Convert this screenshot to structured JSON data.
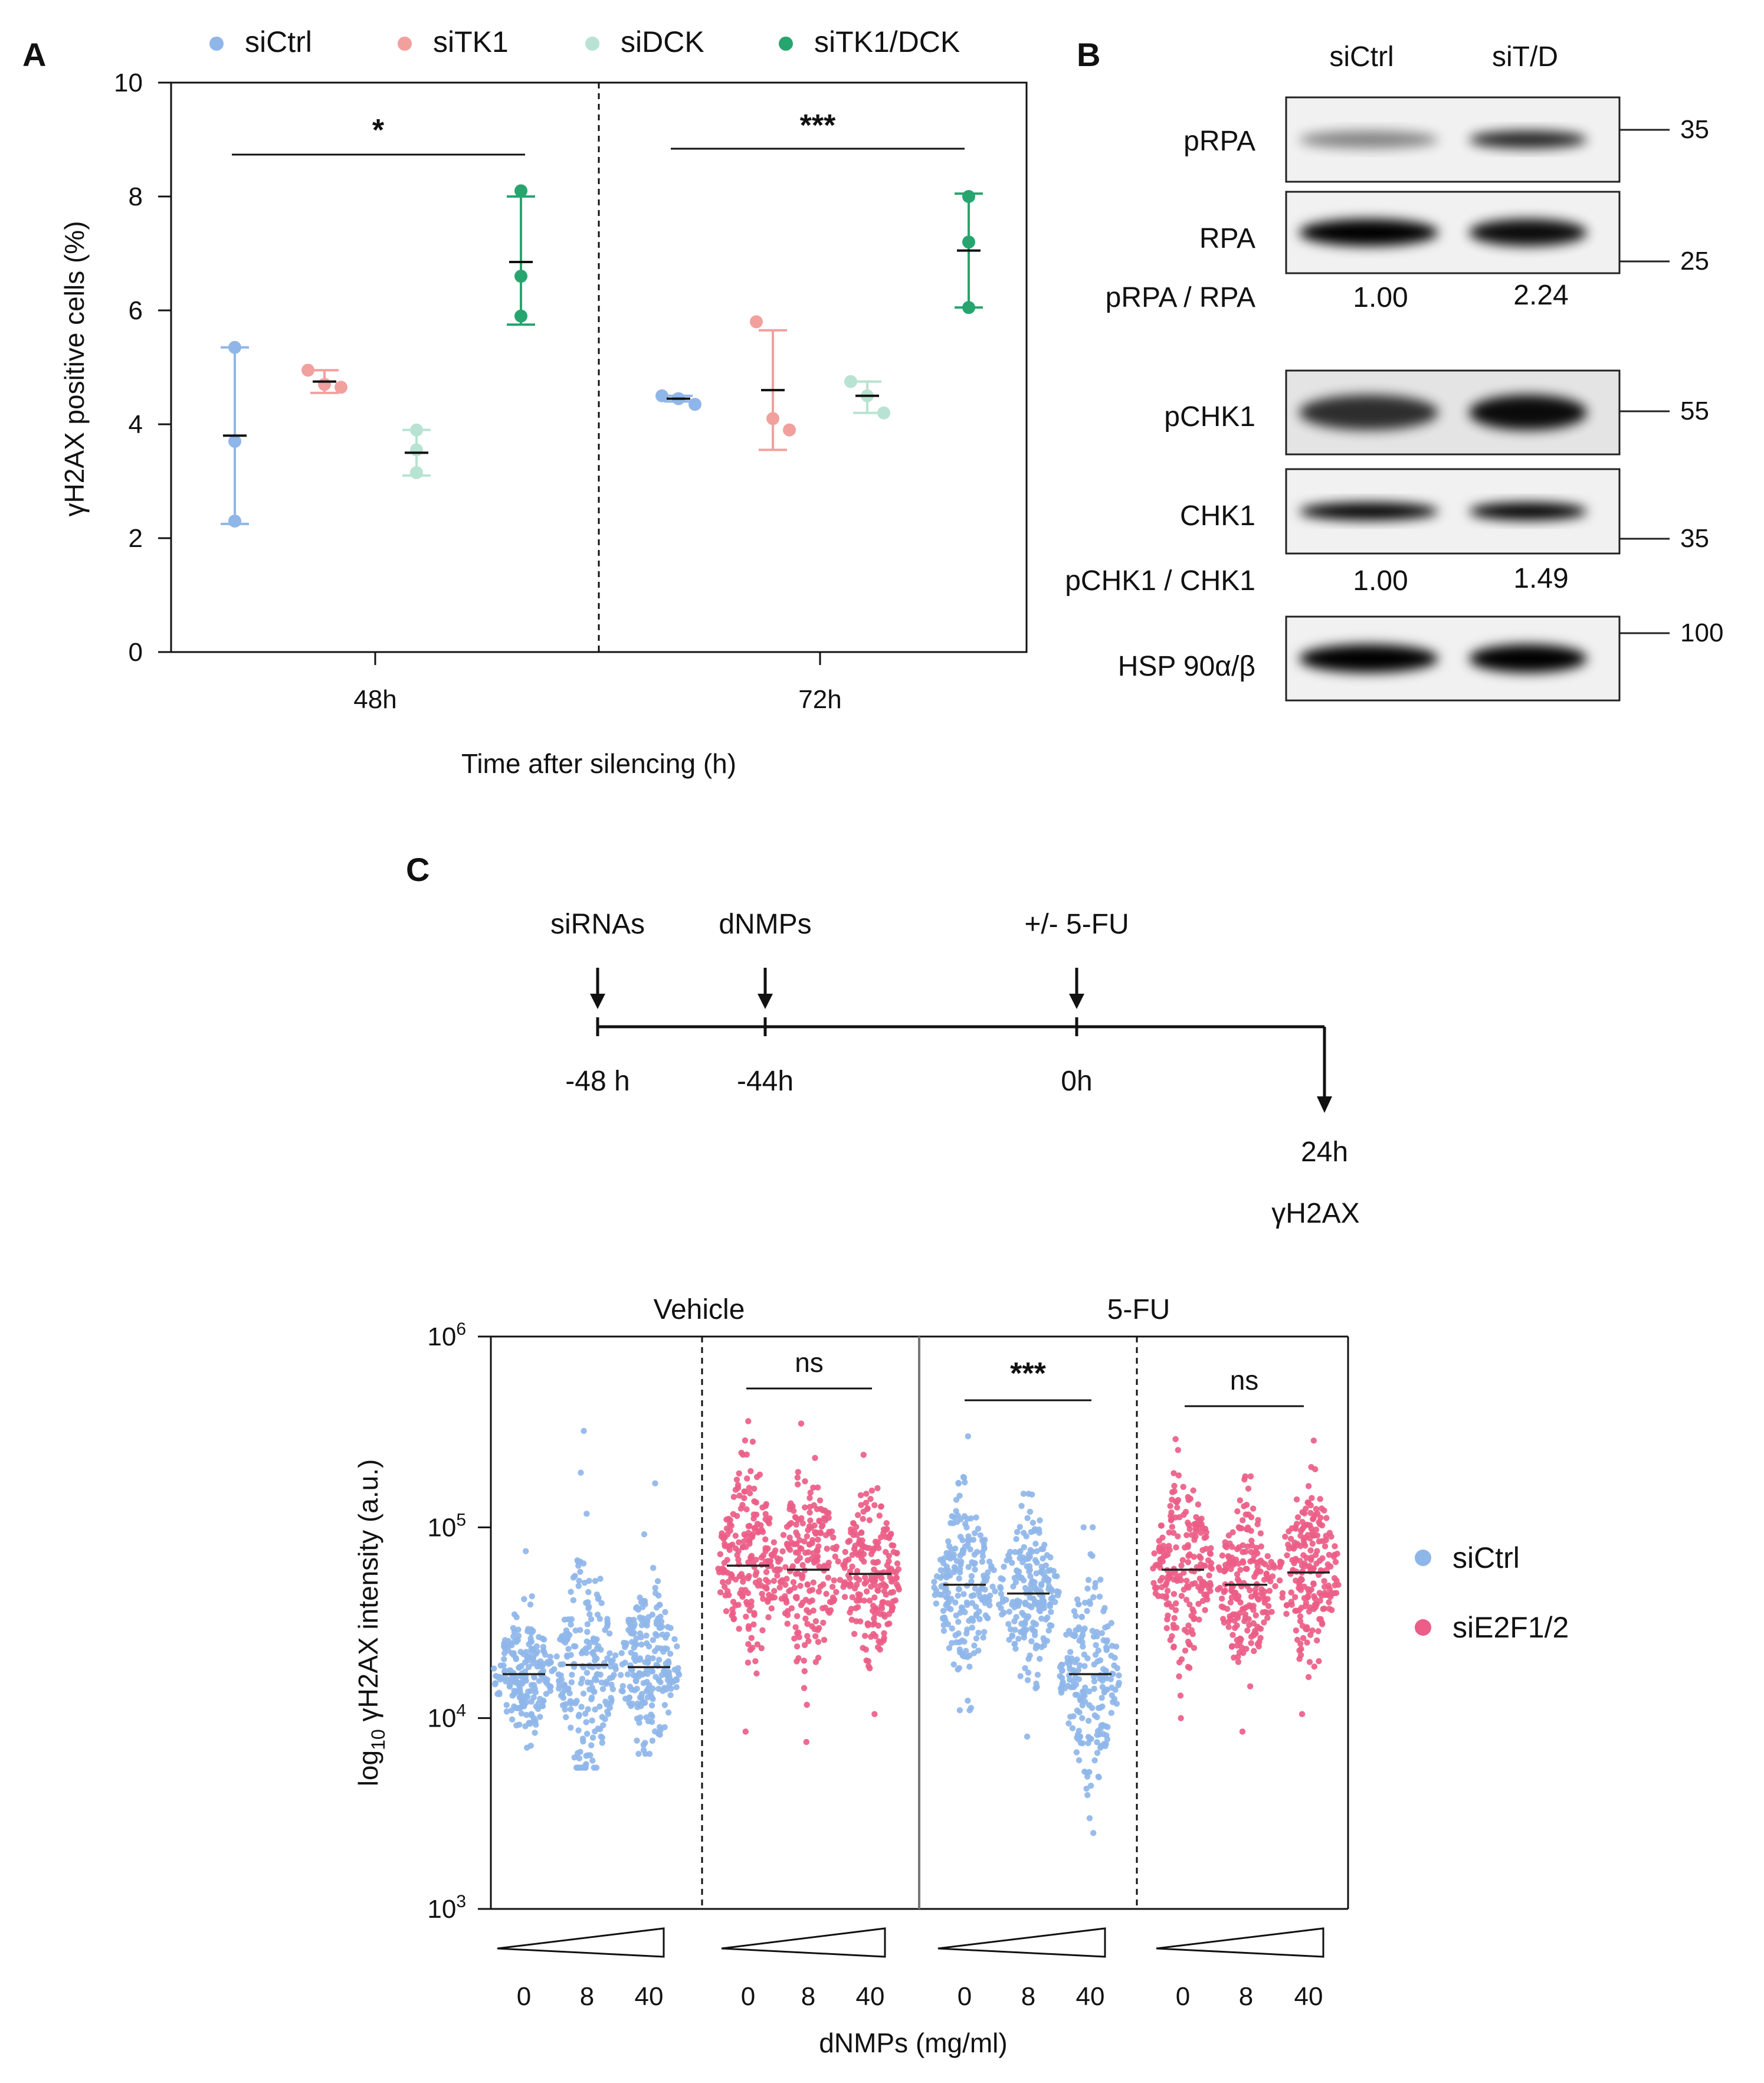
{
  "panels": {
    "A": "A",
    "B": "B",
    "C": "C"
  },
  "colors": {
    "siCtrl": "#8fb6e9",
    "siTK1": "#f2a09e",
    "siDCK": "#b8e3d2",
    "siTK1/DCK": "#27a56e",
    "siE2F1/2": "#ec5d87",
    "siCtrl_C": "#8fb6e9"
  },
  "panel_a": {
    "legend": [
      "siCtrl",
      "siTK1",
      "siDCK",
      "siTK1/DCK"
    ],
    "y_ticks": [
      "0",
      "2",
      "4",
      "6",
      "8",
      "10"
    ],
    "x_ticks": [
      "48h",
      "72h"
    ],
    "sig": [
      "*",
      "***"
    ]
  },
  "panel_b": {
    "columns": [
      "siCtrl",
      "siT/D"
    ],
    "rows": [
      "pRPA",
      "RPA",
      "pCHK1",
      "CHK1",
      "HSP 90α/β"
    ],
    "ratio_labels": [
      "pRPA / RPA",
      "pCHK1  / CHK1"
    ],
    "ratio_values": [
      [
        "1.00",
        "2.24"
      ],
      [
        "1.00",
        "1.49"
      ]
    ],
    "mw_markers": [
      "35",
      "25",
      "55",
      "35",
      "100"
    ]
  },
  "timeline": {
    "events": [
      "siRNAs",
      "dNMPs",
      "+/- 5-FU"
    ],
    "times": [
      "-48 h",
      "-44h",
      "0h"
    ],
    "end_time": "24h",
    "end_label": "γH2AX"
  },
  "panel_c": {
    "groups": [
      "Vehicle",
      "5-FU"
    ],
    "legend": [
      "siCtrl",
      "siE2F1/2"
    ],
    "y_ticks": [
      {
        "base": "10",
        "exp": "3"
      },
      {
        "base": "10",
        "exp": "4"
      },
      {
        "base": "10",
        "exp": "5"
      },
      {
        "base": "10",
        "exp": "6"
      }
    ],
    "y_label_prefix": "log",
    "y_label_sub": "10",
    "y_label_rest": " γH2AX intensity (a.u.)",
    "x_title": "dNMPs  (mg/ml)",
    "dose_ticks": [
      "0",
      "8",
      "40"
    ],
    "sig": [
      "ns",
      "***",
      "ns"
    ]
  },
  "chart_data": [
    {
      "type": "scatter",
      "panel": "A",
      "xlabel": "Time after silencing (h)",
      "ylabel": "γH2AX positive cells (%)",
      "ylim": [
        0,
        10
      ],
      "categories": [
        "48h",
        "72h"
      ],
      "series": [
        {
          "name": "siCtrl",
          "points": {
            "48h": [
              5.35,
              3.7,
              2.3
            ],
            "72h": [
              4.5,
              4.45,
              4.35
            ]
          },
          "mean": {
            "48h": 3.8,
            "72h": 4.45
          },
          "sd": {
            "48h": [
              2.25,
              5.35
            ],
            "72h": [
              4.4,
              4.5
            ]
          }
        },
        {
          "name": "siTK1",
          "points": {
            "48h": [
              4.95,
              4.7,
              4.65
            ],
            "72h": [
              5.8,
              4.1,
              3.9
            ]
          },
          "mean": {
            "48h": 4.75,
            "72h": 4.6
          },
          "sd": {
            "48h": [
              4.55,
              4.95
            ],
            "72h": [
              3.55,
              5.65
            ]
          }
        },
        {
          "name": "siDCK",
          "points": {
            "48h": [
              3.9,
              3.55,
              3.15
            ],
            "72h": [
              4.75,
              4.5,
              4.2
            ]
          },
          "mean": {
            "48h": 3.5,
            "72h": 4.5
          },
          "sd": {
            "48h": [
              3.1,
              3.9
            ],
            "72h": [
              4.2,
              4.75
            ]
          }
        },
        {
          "name": "siTK1/DCK",
          "points": {
            "48h": [
              8.1,
              6.6,
              5.9
            ],
            "72h": [
              8.0,
              7.2,
              6.05
            ]
          },
          "mean": {
            "48h": 6.85,
            "72h": 7.05
          },
          "sd": {
            "48h": [
              5.75,
              8.0
            ],
            "72h": [
              6.05,
              8.05
            ]
          }
        }
      ]
    },
    {
      "type": "scatter",
      "panel": "C",
      "y_scale": "log",
      "ylim": [
        1000,
        1000000
      ],
      "xlabel": "dNMPs  (mg/ml)",
      "groups": [
        {
          "treatment": "Vehicle",
          "siRNA": "siCtrl",
          "doses": [
            0,
            8,
            40
          ],
          "median": [
            17000,
            19000,
            18500
          ],
          "min": [
            7000,
            5500,
            6500
          ],
          "max": [
            75000,
            320000,
            170000
          ]
        },
        {
          "treatment": "Vehicle",
          "siRNA": "siE2F1/2",
          "doses": [
            0,
            8,
            40
          ],
          "median": [
            63000,
            60000,
            57000
          ],
          "min": [
            8500,
            7500,
            10500
          ],
          "max": [
            360000,
            350000,
            240000
          ]
        },
        {
          "treatment": "5-FU",
          "siRNA": "siCtrl",
          "doses": [
            0,
            8,
            40
          ],
          "median": [
            50000,
            45000,
            17000
          ],
          "min": [
            11000,
            8000,
            2500
          ],
          "max": [
            300000,
            150000,
            100000
          ]
        },
        {
          "treatment": "5-FU",
          "siRNA": "siE2F1/2",
          "doses": [
            0,
            8,
            40
          ],
          "median": [
            60000,
            50000,
            58000
          ],
          "min": [
            10000,
            8500,
            10500
          ],
          "max": [
            290000,
            185000,
            285000
          ]
        }
      ]
    }
  ]
}
